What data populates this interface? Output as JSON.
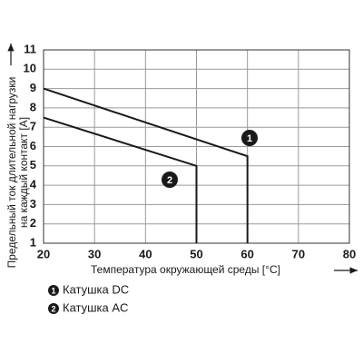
{
  "chart_data": {
    "type": "line",
    "xlabel": "Температура окружающей среды [°C]",
    "ylabel": [
      "Предельный ток длительной нагрузки",
      "на каждый контакт [A]"
    ],
    "series": [
      {
        "name": "Катушка DC",
        "label": "1",
        "color": "#1a1a1a",
        "x": [
          20,
          60,
          60
        ],
        "values": [
          9,
          5.5,
          1
        ]
      },
      {
        "name": "Катушка AC",
        "label": "2",
        "color": "#1a1a1a",
        "x": [
          20,
          50,
          50
        ],
        "values": [
          7.5,
          5,
          1
        ]
      }
    ],
    "xlim": [
      20,
      80
    ],
    "xticks": [
      20,
      30,
      40,
      50,
      60,
      70,
      80
    ],
    "ylim": [
      1,
      11
    ],
    "yticks": [
      1,
      2,
      3,
      4,
      5,
      6,
      7,
      8,
      9,
      10,
      11
    ],
    "grid": true
  }
}
